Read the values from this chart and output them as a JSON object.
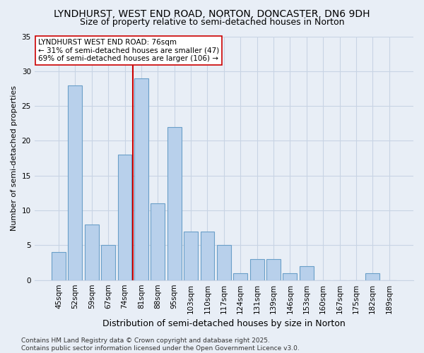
{
  "title": "LYNDHURST, WEST END ROAD, NORTON, DONCASTER, DN6 9DH",
  "subtitle": "Size of property relative to semi-detached houses in Norton",
  "xlabel": "Distribution of semi-detached houses by size in Norton",
  "ylabel": "Number of semi-detached properties",
  "categories": [
    "45sqm",
    "52sqm",
    "59sqm",
    "67sqm",
    "74sqm",
    "81sqm",
    "88sqm",
    "95sqm",
    "103sqm",
    "110sqm",
    "117sqm",
    "124sqm",
    "131sqm",
    "139sqm",
    "146sqm",
    "153sqm",
    "160sqm",
    "167sqm",
    "175sqm",
    "182sqm",
    "189sqm"
  ],
  "values": [
    4,
    28,
    8,
    5,
    18,
    29,
    11,
    22,
    7,
    7,
    5,
    1,
    3,
    3,
    1,
    2,
    0,
    0,
    0,
    1,
    0
  ],
  "bar_color": "#b8d0eb",
  "bar_edge_color": "#6a9fc8",
  "grid_color": "#c8d4e4",
  "background_color": "#e8eef6",
  "vline_x_idx": 4,
  "vline_color": "#cc0000",
  "annotation_text": "LYNDHURST WEST END ROAD: 76sqm\n← 31% of semi-detached houses are smaller (47)\n69% of semi-detached houses are larger (106) →",
  "annotation_box_color": "#ffffff",
  "annotation_box_edge": "#cc0000",
  "ylim": [
    0,
    35
  ],
  "yticks": [
    0,
    5,
    10,
    15,
    20,
    25,
    30,
    35
  ],
  "footer": "Contains HM Land Registry data © Crown copyright and database right 2025.\nContains public sector information licensed under the Open Government Licence v3.0.",
  "title_fontsize": 10,
  "subtitle_fontsize": 9,
  "xlabel_fontsize": 9,
  "ylabel_fontsize": 8,
  "tick_fontsize": 7.5,
  "annotation_fontsize": 7.5,
  "footer_fontsize": 6.5
}
